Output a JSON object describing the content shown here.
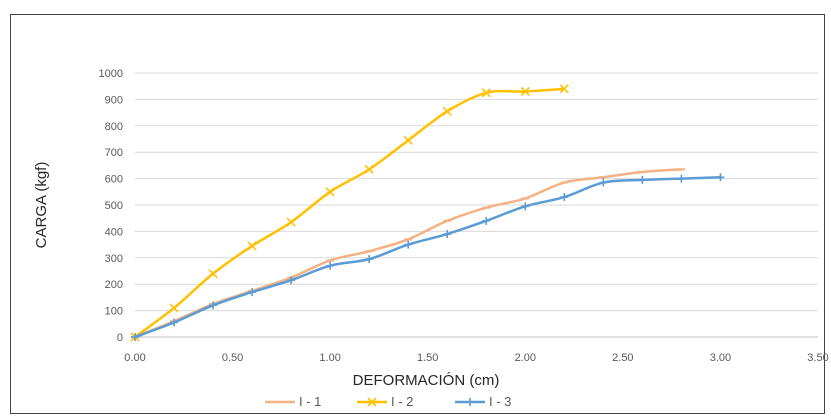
{
  "chart_data": {
    "type": "line",
    "title": "",
    "xlabel": "DEFORMACIÓN (cm)",
    "ylabel": "CARGA (kgf)",
    "xlim": [
      0,
      3.5
    ],
    "ylim": [
      0,
      1000
    ],
    "x_ticks": [
      "0.00",
      "0.50",
      "1.00",
      "1.50",
      "2.00",
      "2.50",
      "3.00",
      "3.50"
    ],
    "y_ticks": [
      "0",
      "100",
      "200",
      "300",
      "400",
      "500",
      "600",
      "700",
      "800",
      "900",
      "1000"
    ],
    "grid": true,
    "legend_position": "bottom",
    "series": [
      {
        "name": "I - 1",
        "color": "#F4B183",
        "marker": "dash",
        "x": [
          0.0,
          0.2,
          0.4,
          0.6,
          0.8,
          1.0,
          1.2,
          1.4,
          1.6,
          1.8,
          2.0,
          2.2,
          2.4,
          2.6,
          2.8
        ],
        "y": [
          0,
          60,
          125,
          175,
          225,
          290,
          325,
          370,
          440,
          490,
          525,
          585,
          605,
          625,
          635
        ]
      },
      {
        "name": "I - 2",
        "color": "#FFC000",
        "marker": "x",
        "x": [
          0.0,
          0.2,
          0.4,
          0.6,
          0.8,
          1.0,
          1.2,
          1.4,
          1.6,
          1.8,
          2.0,
          2.2
        ],
        "y": [
          0,
          110,
          240,
          345,
          435,
          550,
          635,
          745,
          855,
          925,
          930,
          940
        ]
      },
      {
        "name": "I - 3",
        "color": "#5B9BD5",
        "marker": "plus",
        "x": [
          0.0,
          0.2,
          0.4,
          0.6,
          0.8,
          1.0,
          1.2,
          1.4,
          1.6,
          1.8,
          2.0,
          2.2,
          2.4,
          2.6,
          2.8,
          3.0
        ],
        "y": [
          0,
          55,
          120,
          170,
          215,
          270,
          295,
          350,
          390,
          440,
          495,
          530,
          585,
          595,
          600,
          605
        ]
      }
    ]
  }
}
